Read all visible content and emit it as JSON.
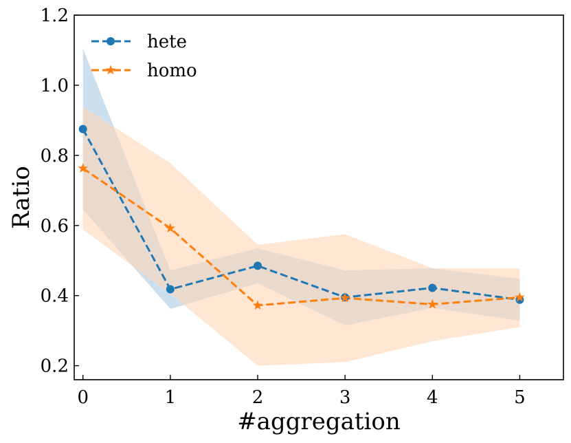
{
  "chart_data": {
    "type": "line",
    "title": "",
    "xlabel": "#aggregation",
    "ylabel": "Ratio",
    "x": [
      0,
      1,
      2,
      3,
      4,
      5
    ],
    "xlim": [
      -0.1,
      5.5
    ],
    "ylim": [
      0.16,
      1.2
    ],
    "xticks": [
      0,
      1,
      2,
      3,
      4,
      5
    ],
    "xtick_labels": [
      "0",
      "1",
      "2",
      "3",
      "4",
      "5"
    ],
    "yticks": [
      0.2,
      0.4,
      0.6,
      0.8,
      1.0,
      1.2
    ],
    "ytick_labels": [
      "0.2",
      "0.4",
      "0.6",
      "0.8",
      "1.0",
      "1.2"
    ],
    "legend_position": "top-left",
    "grid": false,
    "series": [
      {
        "name": "hete",
        "marker": "circle",
        "color": "#1f77b4",
        "band_color": "#b9d4ea",
        "values": [
          0.875,
          0.418,
          0.485,
          0.395,
          0.422,
          0.388
        ],
        "lower": [
          0.645,
          0.362,
          0.435,
          0.315,
          0.365,
          0.328
        ],
        "upper": [
          1.105,
          0.472,
          0.535,
          0.472,
          0.478,
          0.448
        ]
      },
      {
        "name": "homo",
        "marker": "star",
        "color": "#ff7f0e",
        "band_color": "#ffd7b8",
        "values": [
          0.763,
          0.592,
          0.372,
          0.393,
          0.375,
          0.395
        ],
        "lower": [
          0.588,
          0.405,
          0.2,
          0.21,
          0.27,
          0.31
        ],
        "upper": [
          0.938,
          0.778,
          0.545,
          0.575,
          0.478,
          0.478
        ]
      }
    ]
  }
}
